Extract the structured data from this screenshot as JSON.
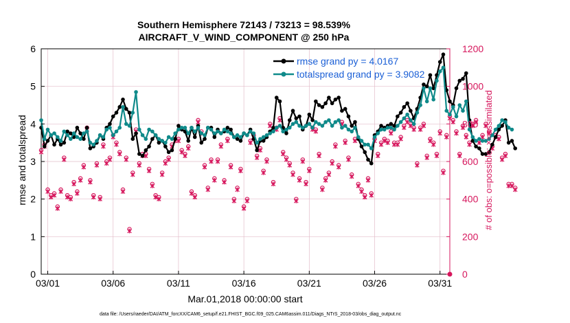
{
  "chart_data": {
    "type": "line",
    "title_line1": "Southern Hemisphere 72143 / 73213 = 98.539%",
    "title_line2": "AIRCRAFT_V_WIND_COMPONENT @ 250 hPa",
    "xlabel": "Mar.01,2018 00:00:00 start",
    "ylabel_left": "rmse and totalspread",
    "ylabel_right": "# of obs: o=possible; ×=assimilated",
    "footnote": "data file: /Users/raeder/DAI/ATM_forcXX/CAM6_setup/f.e21.FHIST_BGC.f09_025.CAM6assim.011/Diags_NTrS_2018-03/obs_diag_output.nc",
    "xlim": [
      0.5,
      31.75
    ],
    "ylim_left": [
      0,
      6
    ],
    "ylim_right": [
      0,
      1200
    ],
    "x_tick_values": [
      1,
      6,
      11,
      16,
      21,
      26,
      31
    ],
    "x_tick_labels": [
      "03/01",
      "03/06",
      "03/11",
      "03/16",
      "03/21",
      "03/26",
      "03/31"
    ],
    "y_left_ticks": [
      "0",
      "1",
      "2",
      "3",
      "4",
      "5",
      "6"
    ],
    "y_right_ticks": [
      "0",
      "200",
      "400",
      "600",
      "800",
      "1000",
      "1200"
    ],
    "legend": [
      "rmse grand py = 4.0167",
      "totalspread grand py = 3.9082"
    ],
    "colors": {
      "rmse": "#000000",
      "totalspread": "#0f8a8a",
      "obs": "#d6165c",
      "legend_text": "#1a5fd6",
      "grid": "#e3bdc9"
    },
    "x_start": 0.5,
    "x_step": 0.25,
    "series": [
      {
        "name": "rmse",
        "values": [
          3.9,
          3.4,
          3.55,
          3.7,
          3.45,
          3.6,
          3.45,
          3.5,
          3.8,
          3.75,
          3.65,
          3.9,
          3.75,
          3.6,
          3.9,
          3.35,
          3.4,
          3.5,
          3.7,
          3.6,
          3.9,
          4.0,
          4.2,
          4.3,
          4.45,
          4.65,
          4.4,
          4.3,
          3.6,
          3.75,
          3.2,
          3.15,
          3.3,
          3.4,
          3.6,
          3.7,
          3.5,
          3.55,
          3.4,
          3.25,
          3.3,
          3.6,
          3.95,
          3.85,
          3.8,
          3.55,
          3.9,
          3.65,
          3.95,
          3.5,
          3.6,
          3.9,
          3.9,
          3.65,
          3.85,
          3.75,
          3.8,
          3.9,
          3.85,
          3.65,
          3.6,
          3.55,
          3.75,
          3.7,
          3.85,
          3.6,
          3.3,
          3.55,
          3.55,
          3.65,
          3.8,
          3.9,
          4.7,
          4.6,
          3.9,
          3.75,
          4.1,
          4.35,
          4.15,
          4.2,
          3.85,
          3.95,
          4.25,
          4.1,
          4.6,
          4.5,
          4.45,
          4.55,
          4.7,
          4.55,
          4.65,
          4.7,
          4.35,
          4.4,
          4.2,
          3.95,
          4.05,
          3.6,
          3.4,
          3.25,
          3.05,
          2.95,
          3.7,
          3.8,
          3.95,
          3.9,
          3.95,
          4.0,
          3.95,
          4.2,
          4.3,
          4.45,
          4.55,
          4.35,
          4.15,
          4.4,
          4.7,
          5.05,
          5.0,
          5.3,
          4.95,
          5.3,
          5.65,
          5.85,
          4.9,
          4.6,
          4.5,
          4.95,
          5.15,
          5.2,
          5.35,
          4.1,
          3.55,
          3.4,
          3.35,
          3.2,
          3.2,
          3.25,
          3.45,
          3.65,
          3.85,
          3.95,
          4.1,
          3.5,
          3.55,
          3.35
        ]
      },
      {
        "name": "totalspread",
        "values": [
          4.1,
          3.6,
          3.85,
          3.7,
          3.75,
          3.65,
          3.55,
          3.8,
          3.7,
          3.6,
          3.75,
          3.65,
          3.6,
          3.75,
          3.8,
          3.5,
          3.45,
          3.55,
          3.7,
          3.65,
          3.85,
          3.9,
          3.7,
          3.8,
          3.9,
          4.45,
          4.0,
          3.95,
          4.3,
          4.85,
          3.85,
          3.7,
          3.6,
          3.85,
          3.8,
          3.7,
          3.6,
          3.55,
          3.5,
          3.65,
          3.6,
          3.75,
          3.85,
          3.9,
          3.9,
          3.75,
          3.9,
          3.8,
          3.9,
          3.75,
          3.7,
          3.9,
          3.85,
          3.75,
          3.8,
          3.75,
          3.85,
          3.8,
          3.75,
          3.65,
          3.7,
          3.65,
          3.75,
          3.7,
          3.8,
          3.75,
          3.5,
          3.6,
          3.65,
          3.7,
          3.75,
          3.8,
          3.9,
          3.95,
          3.8,
          3.85,
          3.9,
          4.0,
          4.05,
          3.95,
          3.9,
          3.95,
          4.0,
          3.9,
          4.05,
          4.0,
          3.95,
          4.05,
          4.1,
          3.95,
          4.05,
          4.1,
          3.9,
          3.95,
          3.85,
          3.8,
          3.9,
          3.65,
          3.55,
          3.45,
          3.45,
          3.35,
          3.65,
          3.75,
          3.85,
          3.85,
          3.9,
          3.9,
          3.85,
          3.95,
          4.05,
          4.15,
          4.25,
          4.1,
          4.0,
          4.3,
          4.5,
          4.95,
          4.6,
          4.95,
          4.65,
          5.15,
          5.4,
          5.5,
          4.35,
          4.25,
          4.45,
          4.2,
          4.5,
          4.35,
          4.6,
          3.85,
          3.65,
          3.55,
          3.6,
          3.55,
          3.55,
          3.6,
          3.7,
          3.85,
          3.95,
          4.1,
          4.05,
          3.9,
          3.85
        ]
      },
      {
        "name": "obs_possible",
        "values": [
          660,
          690,
          450,
          420,
          430,
          360,
          450,
          620,
          420,
          410,
          490,
          440,
          510,
          580,
          780,
          500,
          420,
          590,
          410,
          690,
          600,
          620,
          740,
          700,
          650,
          450,
          620,
          240,
          540,
          770,
          590,
          640,
          640,
          560,
          480,
          420,
          410,
          540,
          600,
          620,
          690,
          720,
          720,
          660,
          640,
          680,
          440,
          420,
          820,
          760,
          580,
          460,
          610,
          510,
          610,
          690,
          500,
          720,
          580,
          400,
          460,
          560,
          360,
          400,
          710,
          740,
          630,
          670,
          550,
          610,
          800,
          490,
          780,
          830,
          650,
          620,
          590,
          540,
          400,
          510,
          610,
          490,
          560,
          780,
          770,
          640,
          460,
          510,
          540,
          600,
          690,
          580,
          810,
          710,
          620,
          530,
          720,
          480,
          450,
          420,
          510,
          430,
          720,
          640,
          700,
          720,
          710,
          760,
          700,
          700,
          730,
          790,
          820,
          800,
          780,
          590,
          780,
          800,
          630,
          720,
          700,
          640,
          760,
          550,
          740,
          840,
          820,
          760,
          640,
          790,
          740,
          700,
          800,
          820,
          710,
          740,
          800,
          760,
          680,
          740,
          730,
          620,
          640,
          480,
          480,
          460
        ]
      },
      {
        "name": "obs_assimilated",
        "values": [
          650,
          680,
          440,
          410,
          420,
          350,
          440,
          610,
          410,
          400,
          480,
          430,
          500,
          570,
          770,
          490,
          410,
          580,
          400,
          680,
          590,
          610,
          730,
          690,
          640,
          440,
          610,
          230,
          530,
          760,
          580,
          630,
          630,
          550,
          470,
          410,
          400,
          530,
          590,
          610,
          680,
          710,
          710,
          650,
          630,
          670,
          430,
          410,
          810,
          750,
          570,
          450,
          600,
          500,
          600,
          680,
          490,
          710,
          570,
          390,
          450,
          550,
          350,
          390,
          700,
          730,
          620,
          660,
          540,
          600,
          790,
          480,
          770,
          820,
          640,
          610,
          580,
          530,
          390,
          500,
          600,
          480,
          550,
          770,
          760,
          630,
          450,
          500,
          530,
          590,
          680,
          570,
          800,
          700,
          610,
          520,
          710,
          470,
          440,
          410,
          500,
          420,
          710,
          630,
          690,
          710,
          700,
          750,
          690,
          690,
          720,
          780,
          810,
          790,
          770,
          580,
          770,
          790,
          620,
          710,
          690,
          630,
          750,
          540,
          730,
          830,
          810,
          750,
          630,
          780,
          730,
          690,
          790,
          810,
          700,
          730,
          790,
          750,
          670,
          730,
          720,
          610,
          630,
          470,
          470,
          450
        ]
      }
    ]
  }
}
